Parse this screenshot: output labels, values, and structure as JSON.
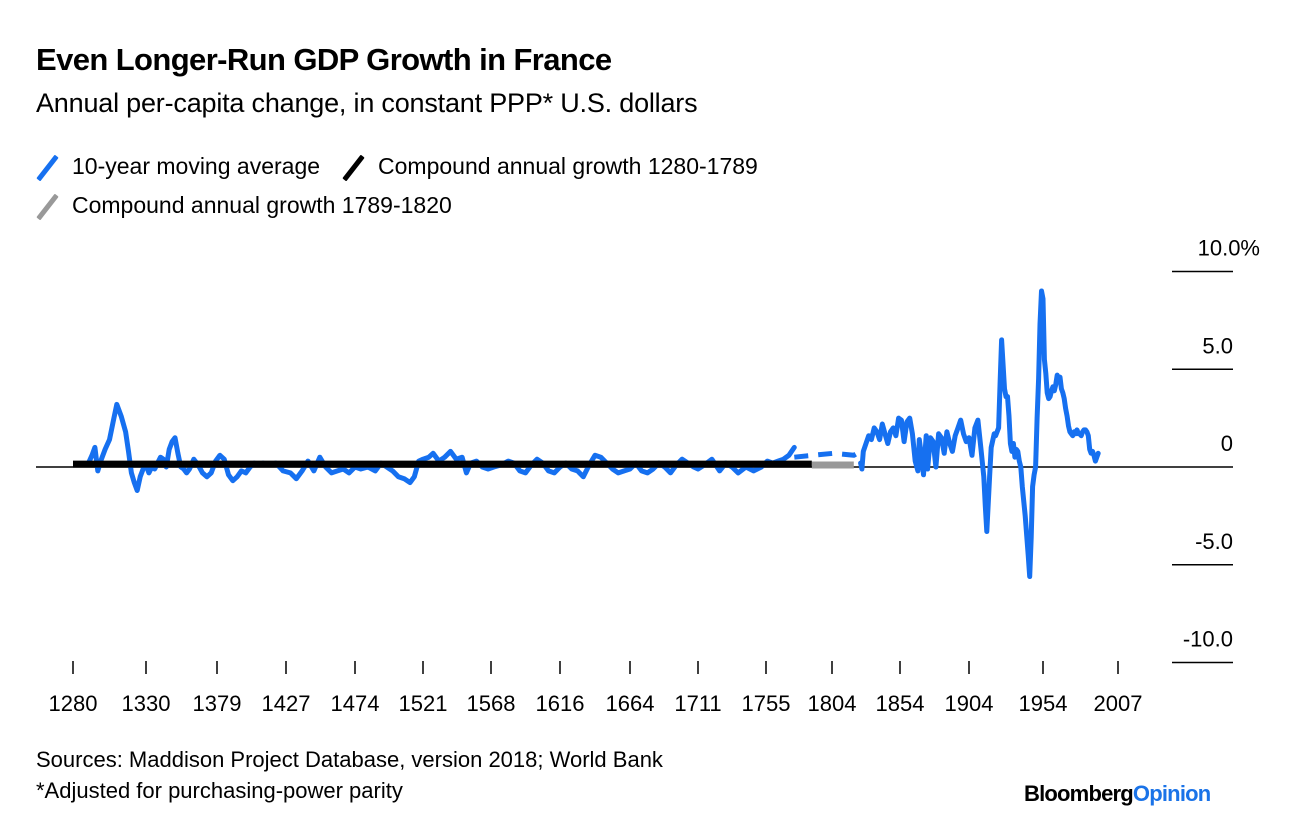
{
  "header": {
    "title": "Even Longer-Run GDP Growth in France",
    "subtitle": "Annual per-capita change, in constant PPP* U.S. dollars"
  },
  "legend": [
    {
      "label": "10-year moving average",
      "color": "#1670f0"
    },
    {
      "label": "Compound annual growth 1280-1789",
      "color": "#000000"
    },
    {
      "label": "Compound annual growth 1789-1820",
      "color": "#999999"
    }
  ],
  "footer": {
    "source": "Sources: Maddison Project Database, version 2018; World Bank",
    "note": "*Adjusted for purchasing-power parity",
    "brand_part1": "Bloomberg",
    "brand_part2": "Opinion"
  },
  "chart_data": {
    "type": "line",
    "title": "Even Longer-Run GDP Growth in France",
    "subtitle": "Annual per-capita change, in constant PPP* U.S. dollars",
    "xlabel": "",
    "ylabel": "",
    "x_tick_labels": [
      "1280",
      "1330",
      "1379",
      "1427",
      "1474",
      "1521",
      "1568",
      "1616",
      "1664",
      "1711",
      "1755",
      "1804",
      "1854",
      "1904",
      "1954",
      "2007"
    ],
    "y_ticks": [
      10,
      5,
      0,
      -5,
      -10
    ],
    "y_tick_labels": [
      "10.0%",
      "5.0",
      "0",
      "-5.0",
      "-10.0"
    ],
    "ylim": [
      -10,
      10
    ],
    "grid": false,
    "legend_position": "top-left",
    "series": [
      {
        "name": "10-year moving average",
        "color": "#1670f0",
        "style": "solid",
        "points": [
          [
            1290,
            0.1
          ],
          [
            1293,
            0.6
          ],
          [
            1295,
            1.0
          ],
          [
            1297,
            -0.2
          ],
          [
            1299,
            0.3
          ],
          [
            1302,
            0.9
          ],
          [
            1305,
            1.4
          ],
          [
            1308,
            2.5
          ],
          [
            1310,
            3.2
          ],
          [
            1313,
            2.6
          ],
          [
            1316,
            1.8
          ],
          [
            1318,
            0.8
          ],
          [
            1320,
            -0.3
          ],
          [
            1322,
            -0.8
          ],
          [
            1324,
            -1.2
          ],
          [
            1326,
            -0.5
          ],
          [
            1328,
            -0.1
          ],
          [
            1330,
            0.1
          ],
          [
            1332,
            -0.3
          ],
          [
            1334,
            0.0
          ],
          [
            1336,
            -0.1
          ],
          [
            1338,
            0.2
          ],
          [
            1340,
            0.5
          ],
          [
            1342,
            0.4
          ],
          [
            1344,
            0.0
          ],
          [
            1346,
            0.9
          ],
          [
            1348,
            1.3
          ],
          [
            1350,
            1.5
          ],
          [
            1352,
            0.7
          ],
          [
            1354,
            0.0
          ],
          [
            1356,
            -0.1
          ],
          [
            1358,
            -0.3
          ],
          [
            1360,
            -0.1
          ],
          [
            1363,
            0.4
          ],
          [
            1366,
            0.1
          ],
          [
            1369,
            -0.3
          ],
          [
            1372,
            -0.5
          ],
          [
            1375,
            -0.3
          ],
          [
            1378,
            0.3
          ],
          [
            1381,
            0.6
          ],
          [
            1384,
            0.4
          ],
          [
            1387,
            -0.4
          ],
          [
            1390,
            -0.7
          ],
          [
            1393,
            -0.5
          ],
          [
            1396,
            -0.2
          ],
          [
            1399,
            -0.3
          ],
          [
            1402,
            0.0
          ],
          [
            1405,
            0.2
          ],
          [
            1408,
            0.1
          ],
          [
            1411,
            0.2
          ],
          [
            1415,
            0.1
          ],
          [
            1420,
            0.2
          ],
          [
            1425,
            -0.2
          ],
          [
            1430,
            -0.3
          ],
          [
            1434,
            -0.6
          ],
          [
            1438,
            -0.2
          ],
          [
            1442,
            0.3
          ],
          [
            1446,
            -0.2
          ],
          [
            1450,
            0.5
          ],
          [
            1454,
            0.0
          ],
          [
            1458,
            -0.3
          ],
          [
            1462,
            -0.2
          ],
          [
            1466,
            -0.1
          ],
          [
            1470,
            -0.3
          ],
          [
            1474,
            0.0
          ],
          [
            1478,
            -0.1
          ],
          [
            1483,
            0.0
          ],
          [
            1488,
            -0.2
          ],
          [
            1492,
            0.2
          ],
          [
            1496,
            0.0
          ],
          [
            1500,
            -0.2
          ],
          [
            1504,
            -0.5
          ],
          [
            1508,
            -0.6
          ],
          [
            1512,
            -0.8
          ],
          [
            1515,
            -0.5
          ],
          [
            1518,
            0.3
          ],
          [
            1521,
            0.4
          ],
          [
            1525,
            0.5
          ],
          [
            1528,
            0.7
          ],
          [
            1532,
            0.3
          ],
          [
            1536,
            0.5
          ],
          [
            1540,
            0.8
          ],
          [
            1544,
            0.4
          ],
          [
            1548,
            0.5
          ],
          [
            1551,
            -0.3
          ],
          [
            1554,
            0.2
          ],
          [
            1558,
            0.3
          ],
          [
            1562,
            0.0
          ],
          [
            1566,
            -0.1
          ],
          [
            1570,
            0.0
          ],
          [
            1575,
            0.1
          ],
          [
            1580,
            0.3
          ],
          [
            1584,
            0.2
          ],
          [
            1588,
            -0.2
          ],
          [
            1592,
            -0.3
          ],
          [
            1596,
            0.1
          ],
          [
            1600,
            0.4
          ],
          [
            1604,
            0.2
          ],
          [
            1608,
            -0.2
          ],
          [
            1612,
            -0.3
          ],
          [
            1616,
            0.0
          ],
          [
            1620,
            0.2
          ],
          [
            1624,
            -0.1
          ],
          [
            1628,
            -0.2
          ],
          [
            1632,
            -0.5
          ],
          [
            1636,
            0.1
          ],
          [
            1640,
            0.6
          ],
          [
            1644,
            0.5
          ],
          [
            1648,
            0.2
          ],
          [
            1652,
            -0.1
          ],
          [
            1656,
            -0.3
          ],
          [
            1660,
            -0.2
          ],
          [
            1664,
            -0.1
          ],
          [
            1668,
            0.2
          ],
          [
            1672,
            -0.2
          ],
          [
            1676,
            -0.3
          ],
          [
            1680,
            -0.1
          ],
          [
            1684,
            0.2
          ],
          [
            1688,
            0.0
          ],
          [
            1692,
            -0.3
          ],
          [
            1696,
            0.1
          ],
          [
            1700,
            0.4
          ],
          [
            1704,
            0.2
          ],
          [
            1708,
            0.0
          ],
          [
            1711,
            -0.1
          ],
          [
            1715,
            0.1
          ],
          [
            1720,
            0.4
          ],
          [
            1725,
            -0.2
          ],
          [
            1729,
            0.2
          ],
          [
            1733,
            0.0
          ],
          [
            1737,
            -0.3
          ],
          [
            1742,
            0.0
          ],
          [
            1747,
            -0.2
          ],
          [
            1752,
            0.0
          ],
          [
            1756,
            0.3
          ],
          [
            1760,
            0.2
          ],
          [
            1764,
            0.3
          ],
          [
            1768,
            0.4
          ],
          [
            1772,
            0.6
          ],
          [
            1776,
            1.0
          ]
        ]
      },
      {
        "name": "10-year moving average (interpolated)",
        "color": "#1670f0",
        "style": "dashed",
        "points": [
          [
            1776,
            0.5
          ],
          [
            1790,
            0.6
          ],
          [
            1805,
            0.7
          ],
          [
            1820,
            0.6
          ],
          [
            1825,
            0.8
          ]
        ]
      },
      {
        "name": "10-year moving average (modern)",
        "color": "#1670f0",
        "style": "solid",
        "points": [
          [
            1825,
            0.2
          ],
          [
            1826,
            -0.1
          ],
          [
            1827,
            0.8
          ],
          [
            1829,
            1.2
          ],
          [
            1831,
            1.6
          ],
          [
            1833,
            1.4
          ],
          [
            1835,
            2.0
          ],
          [
            1837,
            1.8
          ],
          [
            1839,
            1.4
          ],
          [
            1841,
            2.2
          ],
          [
            1843,
            1.7
          ],
          [
            1845,
            1.2
          ],
          [
            1847,
            1.8
          ],
          [
            1849,
            2.0
          ],
          [
            1851,
            1.6
          ],
          [
            1853,
            2.5
          ],
          [
            1855,
            2.4
          ],
          [
            1857,
            1.3
          ],
          [
            1859,
            2.3
          ],
          [
            1861,
            2.5
          ],
          [
            1863,
            1.7
          ],
          [
            1865,
            0.3
          ],
          [
            1867,
            -0.2
          ],
          [
            1868,
            1.4
          ],
          [
            1870,
            0.3
          ],
          [
            1871,
            -0.4
          ],
          [
            1873,
            1.6
          ],
          [
            1874,
            -0.1
          ],
          [
            1876,
            1.5
          ],
          [
            1878,
            1.3
          ],
          [
            1880,
            0.0
          ],
          [
            1882,
            1.7
          ],
          [
            1884,
            1.5
          ],
          [
            1886,
            0.7
          ],
          [
            1888,
            1.8
          ],
          [
            1890,
            1.2
          ],
          [
            1892,
            0.8
          ],
          [
            1894,
            1.6
          ],
          [
            1896,
            2.0
          ],
          [
            1898,
            2.4
          ],
          [
            1900,
            1.7
          ],
          [
            1902,
            1.3
          ],
          [
            1904,
            1.5
          ],
          [
            1906,
            0.6
          ],
          [
            1908,
            2.0
          ],
          [
            1910,
            2.4
          ],
          [
            1912,
            1.0
          ],
          [
            1914,
            -0.5
          ],
          [
            1915,
            -2.0
          ],
          [
            1916,
            -3.3
          ],
          [
            1918,
            -0.4
          ],
          [
            1919,
            1.0
          ],
          [
            1921,
            1.7
          ],
          [
            1922,
            1.6
          ],
          [
            1924,
            2.0
          ],
          [
            1925,
            4.3
          ],
          [
            1926,
            6.5
          ],
          [
            1927,
            5.3
          ],
          [
            1928,
            4.0
          ],
          [
            1929,
            3.6
          ],
          [
            1930,
            3.6
          ],
          [
            1931,
            2.6
          ],
          [
            1932,
            1.2
          ],
          [
            1933,
            0.8
          ],
          [
            1934,
            1.2
          ],
          [
            1935,
            0.5
          ],
          [
            1936,
            0.9
          ],
          [
            1937,
            0.8
          ],
          [
            1938,
            0.3
          ],
          [
            1939,
            0.0
          ],
          [
            1940,
            -1.0
          ],
          [
            1942,
            -2.5
          ],
          [
            1944,
            -4.5
          ],
          [
            1945,
            -5.6
          ],
          [
            1946,
            -3.6
          ],
          [
            1947,
            -1.0
          ],
          [
            1948,
            -0.4
          ],
          [
            1949,
            0.0
          ],
          [
            1950,
            2.5
          ],
          [
            1951,
            4.5
          ],
          [
            1952,
            7.3
          ],
          [
            1953,
            9.0
          ],
          [
            1954,
            8.6
          ],
          [
            1955,
            5.5
          ],
          [
            1956,
            4.8
          ],
          [
            1957,
            3.8
          ],
          [
            1958,
            3.5
          ],
          [
            1959,
            3.6
          ],
          [
            1960,
            3.9
          ],
          [
            1961,
            4.1
          ],
          [
            1962,
            3.9
          ],
          [
            1963,
            4.2
          ],
          [
            1964,
            4.7
          ],
          [
            1965,
            4.5
          ],
          [
            1966,
            4.6
          ],
          [
            1967,
            4.0
          ],
          [
            1968,
            3.8
          ],
          [
            1969,
            3.5
          ],
          [
            1970,
            3.0
          ],
          [
            1971,
            2.6
          ],
          [
            1972,
            2.1
          ],
          [
            1973,
            1.8
          ],
          [
            1974,
            1.7
          ],
          [
            1975,
            1.6
          ],
          [
            1976,
            1.8
          ],
          [
            1977,
            1.7
          ],
          [
            1978,
            1.9
          ],
          [
            1979,
            1.7
          ],
          [
            1980,
            1.7
          ],
          [
            1981,
            1.6
          ],
          [
            1982,
            1.8
          ],
          [
            1983,
            1.9
          ],
          [
            1984,
            1.9
          ],
          [
            1985,
            1.8
          ],
          [
            1986,
            1.6
          ],
          [
            1987,
            0.9
          ],
          [
            1988,
            0.7
          ],
          [
            1989,
            0.8
          ],
          [
            1990,
            0.6
          ],
          [
            1991,
            0.3
          ],
          [
            1992,
            0.5
          ],
          [
            1993,
            0.7
          ]
        ]
      },
      {
        "name": "Compound annual growth 1280-1789",
        "color": "#000000",
        "style": "solid",
        "points": [
          [
            1280,
            0.15
          ],
          [
            1789,
            0.15
          ]
        ]
      },
      {
        "name": "Compound annual growth 1789-1820",
        "color": "#999999",
        "style": "solid",
        "points": [
          [
            1789,
            0.1
          ],
          [
            1820,
            0.1
          ]
        ]
      }
    ]
  }
}
